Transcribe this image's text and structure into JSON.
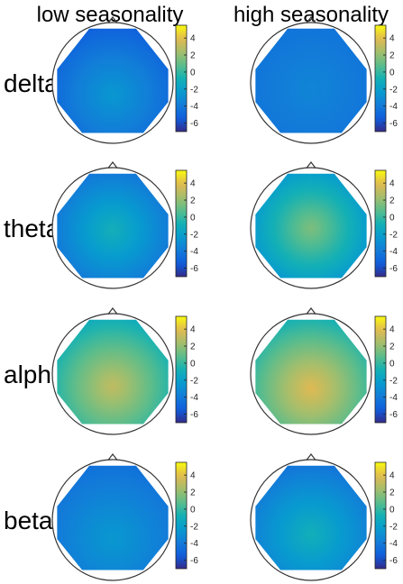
{
  "columns": [
    "low seasonality",
    "high seasonality"
  ],
  "rows": [
    "delta",
    "theta",
    "alpha",
    "beta"
  ],
  "colorbar": {
    "ticks": [
      "4",
      "2",
      "0",
      "-2",
      "-4",
      "-6"
    ],
    "tick_values": [
      4,
      2,
      0,
      -2,
      -4,
      -6
    ],
    "range": [
      -7,
      5.5
    ],
    "colormap": "parula"
  },
  "chart_data": {
    "type": "heatmap",
    "description_type": "topographic scalp maps",
    "value_range": [
      -7,
      5.5
    ],
    "maps": [
      {
        "row": "delta",
        "column": "low seasonality",
        "center": -2.5,
        "edge": -5.5,
        "peak_y": 0.6
      },
      {
        "row": "delta",
        "column": "high seasonality",
        "center": -3.5,
        "edge": -4.5,
        "peak_y": 0.55
      },
      {
        "row": "theta",
        "column": "low seasonality",
        "center": -1.0,
        "edge": -5.0,
        "peak_y": 0.52
      },
      {
        "row": "theta",
        "column": "high seasonality",
        "center": 1.5,
        "edge": -3.5,
        "peak_y": 0.5
      },
      {
        "row": "alpha",
        "column": "low seasonality",
        "center": 3.0,
        "edge": -1.5,
        "peak_y": 0.6
      },
      {
        "row": "alpha",
        "column": "high seasonality",
        "center": 3.8,
        "edge": -1.0,
        "peak_y": 0.62
      },
      {
        "row": "beta",
        "column": "low seasonality",
        "center": -2.5,
        "edge": -4.5,
        "peak_y": 0.65
      },
      {
        "row": "beta",
        "column": "high seasonality",
        "center": -1.0,
        "edge": -4.5,
        "peak_y": 0.62
      }
    ]
  }
}
